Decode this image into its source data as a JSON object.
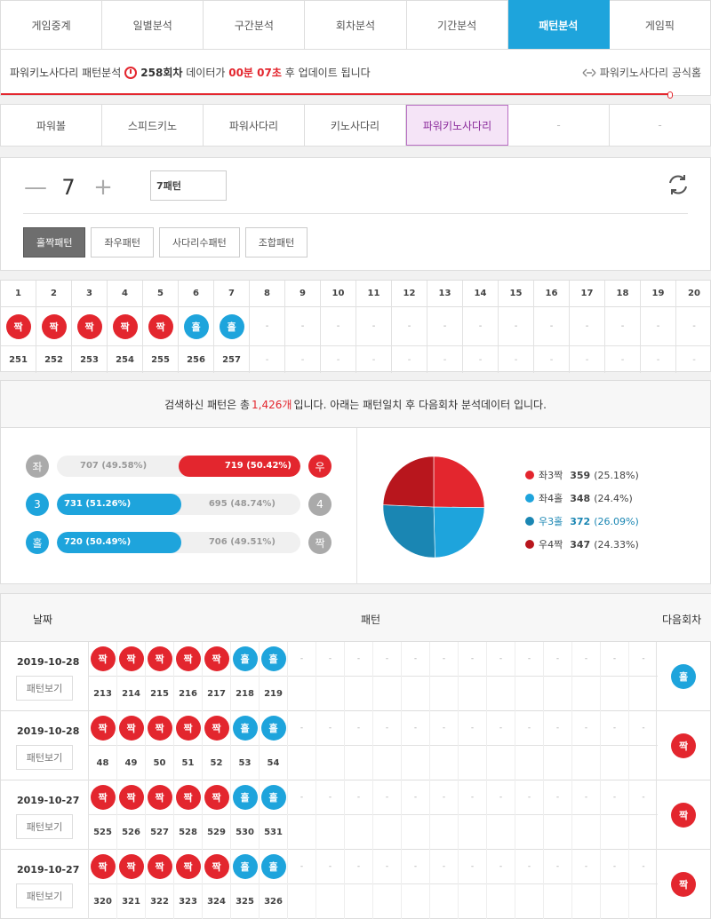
{
  "main_tabs": [
    "게임중계",
    "일별분석",
    "구간분석",
    "회차분석",
    "기간분석",
    "패턴분석",
    "게임픽"
  ],
  "main_tab_active": 5,
  "info": {
    "title": "파워키노사다리 패턴분석",
    "round": "258회차",
    "text1": "데이터가",
    "time": "00분 07초",
    "text2": "후 업데이트 됩니다",
    "official": "파워키노사다리 공식홈"
  },
  "game_tabs": [
    "파워볼",
    "스피드키노",
    "파워사다리",
    "키노사다리",
    "파워키노사다리",
    "-",
    "-"
  ],
  "game_tab_active": 4,
  "stepper": {
    "minus": "—",
    "value": "7",
    "plus": "+"
  },
  "pattern_input": "7패턴",
  "pattern_types": [
    "홀짝패턴",
    "좌우패턴",
    "사다리수패턴",
    "조합패턴"
  ],
  "pattern_type_active": 0,
  "grid": {
    "headers": [
      "1",
      "2",
      "3",
      "4",
      "5",
      "6",
      "7",
      "8",
      "9",
      "10",
      "11",
      "12",
      "13",
      "14",
      "15",
      "16",
      "17",
      "18",
      "19",
      "20"
    ],
    "balls": [
      "짝",
      "짝",
      "짝",
      "짝",
      "짝",
      "홀",
      "홀"
    ],
    "rounds": [
      "251",
      "252",
      "253",
      "254",
      "255",
      "256",
      "257"
    ],
    "empty": "-"
  },
  "summary": {
    "prefix": "검색하신 패턴은 총",
    "count": "1,426개",
    "suffix": "입니다. 아래는 패턴일치 후 다음회차 분석데이터 입니다."
  },
  "bars": [
    {
      "left_icon": "좌",
      "left_label": "707 (49.58%)",
      "right_label": "719 (50.42%)",
      "right_icon": "우",
      "winner": "right",
      "pct": 50.42
    },
    {
      "left_icon": "3",
      "left_label": "731 (51.26%)",
      "right_label": "695 (48.74%)",
      "right_icon": "4",
      "winner": "left",
      "pct": 51.26
    },
    {
      "left_icon": "홀",
      "left_label": "720 (50.49%)",
      "right_label": "706 (49.51%)",
      "right_icon": "짝",
      "winner": "left",
      "pct": 50.49
    }
  ],
  "pie": [
    {
      "name": "좌3짝",
      "value": "359",
      "pct": "(25.18%)",
      "color": "#e3262e",
      "fraction": 0.2518
    },
    {
      "name": "좌4홀",
      "value": "348",
      "pct": "(24.4%)",
      "color": "#1ea4dc",
      "fraction": 0.244
    },
    {
      "name": "우3홀",
      "value": "372",
      "pct": "(26.09%)",
      "color": "#1a86b3",
      "fraction": 0.2609
    },
    {
      "name": "우4짝",
      "value": "347",
      "pct": "(24.33%)",
      "color": "#b8161d",
      "fraction": 0.2433
    }
  ],
  "history": {
    "headers": {
      "date": "날짜",
      "pattern": "패턴",
      "next": "다음회차"
    },
    "view_label": "패턴보기",
    "rows": [
      {
        "date": "2019-10-28",
        "balls": [
          "짝",
          "짝",
          "짝",
          "짝",
          "짝",
          "홀",
          "홀"
        ],
        "rounds": [
          "213",
          "214",
          "215",
          "216",
          "217",
          "218",
          "219"
        ],
        "next": "홀"
      },
      {
        "date": "2019-10-28",
        "balls": [
          "짝",
          "짝",
          "짝",
          "짝",
          "짝",
          "홀",
          "홀"
        ],
        "rounds": [
          "48",
          "49",
          "50",
          "51",
          "52",
          "53",
          "54"
        ],
        "next": "짝"
      },
      {
        "date": "2019-10-27",
        "balls": [
          "짝",
          "짝",
          "짝",
          "짝",
          "짝",
          "홀",
          "홀"
        ],
        "rounds": [
          "525",
          "526",
          "527",
          "528",
          "529",
          "530",
          "531"
        ],
        "next": "짝"
      },
      {
        "date": "2019-10-27",
        "balls": [
          "짝",
          "짝",
          "짝",
          "짝",
          "짝",
          "홀",
          "홀"
        ],
        "rounds": [
          "320",
          "321",
          "322",
          "323",
          "324",
          "325",
          "326"
        ],
        "next": "짝"
      }
    ]
  }
}
